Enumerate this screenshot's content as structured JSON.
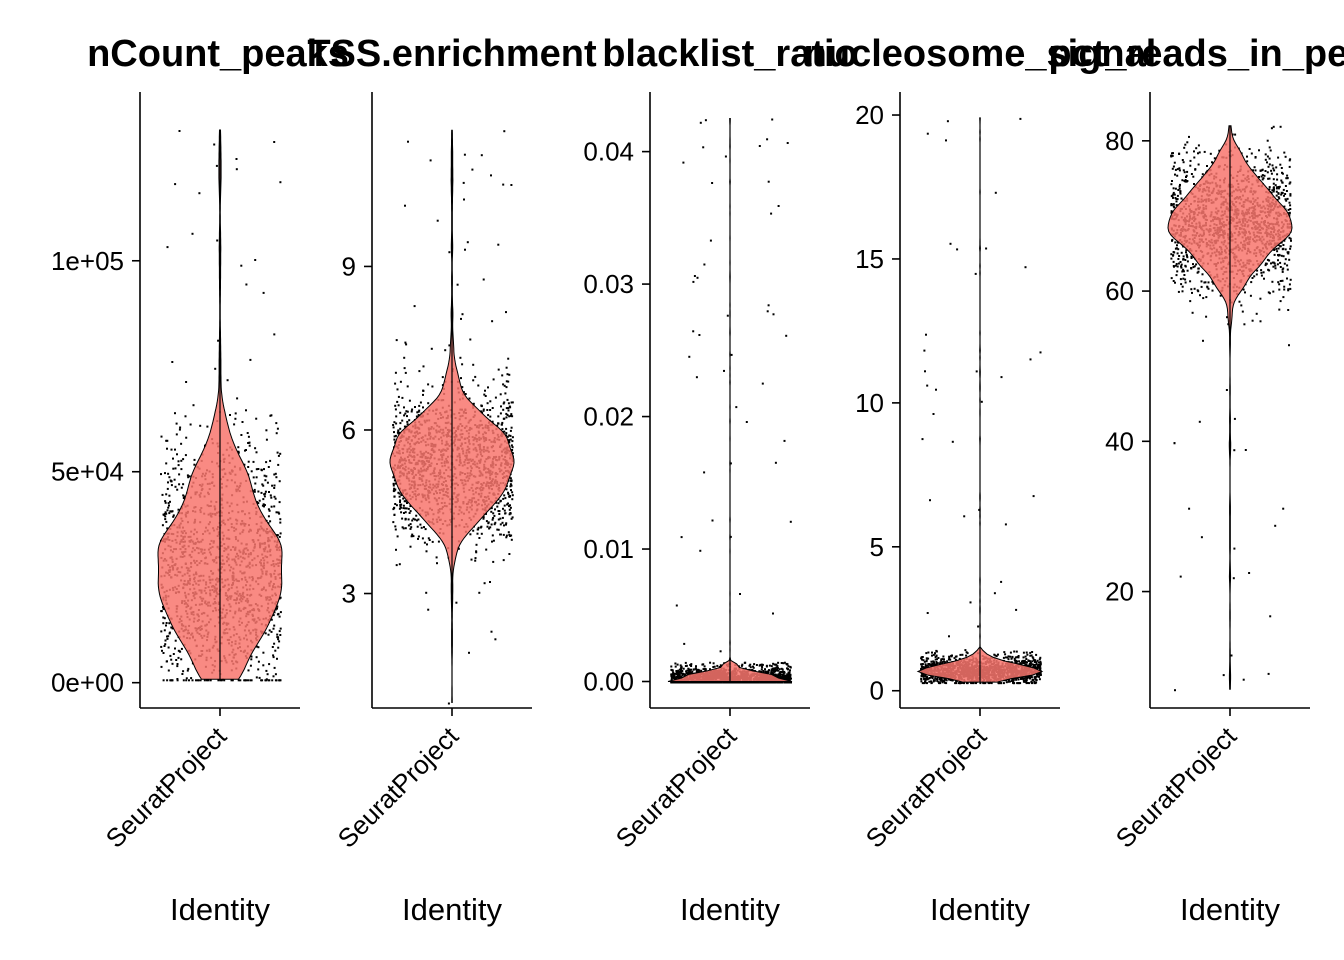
{
  "chart_data": [
    {
      "type": "violin",
      "title": "nCount_peaks",
      "xlabel": "Identity",
      "categories": [
        "SeuratProject"
      ],
      "y_ticks": [
        0,
        50000,
        100000
      ],
      "y_tick_labels": [
        "0e+00",
        "5e+04",
        "1e+05"
      ],
      "ylim": [
        -6000,
        140000
      ],
      "distribution": {
        "min": 800,
        "max": 131000,
        "mode": 27000,
        "q1": 18000,
        "median": 27000,
        "q3": 37000,
        "bulk_low": 3000,
        "bulk_high": 65000
      },
      "color": "#F8766D"
    },
    {
      "type": "violin",
      "title": "TSS.enrichment",
      "xlabel": "Identity",
      "categories": [
        "SeuratProject"
      ],
      "y_ticks": [
        3,
        6,
        9
      ],
      "y_tick_labels": [
        "3",
        "6",
        "9"
      ],
      "ylim": [
        0.9,
        12.2
      ],
      "distribution": {
        "min": 1.0,
        "max": 11.5,
        "mode": 5.4,
        "q1": 4.9,
        "median": 5.4,
        "q3": 5.9,
        "bulk_low": 4.2,
        "bulk_high": 6.4
      },
      "color": "#F8766D"
    },
    {
      "type": "violin",
      "title": "blacklist_ratio",
      "xlabel": "Identity",
      "categories": [
        "SeuratProject"
      ],
      "y_ticks": [
        0.0,
        0.01,
        0.02,
        0.03,
        0.04
      ],
      "y_tick_labels": [
        "0.00",
        "0.01",
        "0.02",
        "0.03",
        "0.04"
      ],
      "ylim": [
        -0.002,
        0.0445
      ],
      "distribution": {
        "min": 0.0,
        "max": 0.0425,
        "mode": 0.0003,
        "q1": 0.0001,
        "median": 0.0003,
        "q3": 0.0006,
        "bulk_low": 0.0,
        "bulk_high": 0.0015
      },
      "color": "#F8766D"
    },
    {
      "type": "violin",
      "title": "nucleosome_signal",
      "xlabel": "Identity",
      "categories": [
        "SeuratProject"
      ],
      "y_ticks": [
        0,
        5,
        10,
        15,
        20
      ],
      "y_tick_labels": [
        "0",
        "5",
        "10",
        "15",
        "20"
      ],
      "ylim": [
        -0.6,
        20.8
      ],
      "distribution": {
        "min": 0.3,
        "max": 19.9,
        "mode": 0.7,
        "q1": 0.55,
        "median": 0.7,
        "q3": 0.85,
        "bulk_low": 0.4,
        "bulk_high": 1.4
      },
      "color": "#F8766D"
    },
    {
      "type": "violin",
      "title": "pct_reads_in_peaks",
      "xlabel": "Identity",
      "categories": [
        "SeuratProject"
      ],
      "y_ticks": [
        20,
        40,
        60,
        80
      ],
      "y_tick_labels": [
        "20",
        "40",
        "60",
        "80"
      ],
      "ylim": [
        4.5,
        86.5
      ],
      "distribution": {
        "min": 7,
        "max": 82,
        "mode": 69,
        "q1": 66,
        "median": 69,
        "q3": 72,
        "bulk_low": 60,
        "bulk_high": 80
      },
      "color": "#F8766D"
    }
  ]
}
